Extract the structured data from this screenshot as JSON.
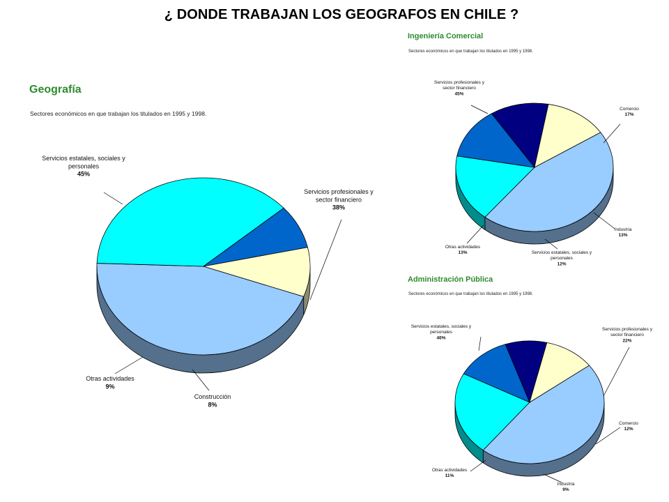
{
  "page": {
    "title": "¿ DONDE TRABAJAN  LOS GEOGRAFOS EN CHILE ?"
  },
  "chart_data": [
    {
      "type": "pie",
      "title": "Geografía",
      "subtitle": "Sectores económicos en que trabajan los titulados en 1995 y 1998.",
      "slices": [
        {
          "label": "Servicios estatales, sociales y personales",
          "value": 45,
          "value_label": "45%",
          "color": "#99ccff"
        },
        {
          "label": "Servicios profesionales y sector financiero",
          "value": 38,
          "value_label": "38%",
          "color": "#00ffff"
        },
        {
          "label": "Construcción",
          "value": 8,
          "value_label": "8%",
          "color": "#0066cc"
        },
        {
          "label": "Otras actividades",
          "value": 9,
          "value_label": "9%",
          "color": "#ffffcc"
        }
      ]
    },
    {
      "type": "pie",
      "title": "Ingeniería Comercial",
      "subtitle": "Sectores económicos en que trabajan los titulados en 1995 y 1998.",
      "slices": [
        {
          "label": "Servicios profesionales y sector financiero",
          "value": 45,
          "value_label": "45%",
          "color": "#99ccff"
        },
        {
          "label": "Comercio",
          "value": 17,
          "value_label": "17%",
          "color": "#00ffff"
        },
        {
          "label": "Industria",
          "value": 13,
          "value_label": "13%",
          "color": "#0066cc"
        },
        {
          "label": "Servicios estatales, sociales y personales",
          "value": 12,
          "value_label": "12%",
          "color": "#000080"
        },
        {
          "label": "Otras actividades",
          "value": 13,
          "value_label": "13%",
          "color": "#ffffcc"
        }
      ]
    },
    {
      "type": "pie",
      "title": "Administración Pública",
      "subtitle": "Sectores económicos en que trabajan los titulados en 1995 y 1998.",
      "slices": [
        {
          "label": "Servicios estatales, sociales y personales",
          "value": 46,
          "value_label": "46%",
          "color": "#99ccff"
        },
        {
          "label": "Servicios profesionales y sector financiero",
          "value": 22,
          "value_label": "22%",
          "color": "#00ffff"
        },
        {
          "label": "Comercio",
          "value": 12,
          "value_label": "12%",
          "color": "#0066cc"
        },
        {
          "label": "Industria",
          "value": 9,
          "value_label": "9%",
          "color": "#000080"
        },
        {
          "label": "Otras actividades",
          "value": 11,
          "value_label": "11%",
          "color": "#ffffcc"
        }
      ]
    }
  ]
}
